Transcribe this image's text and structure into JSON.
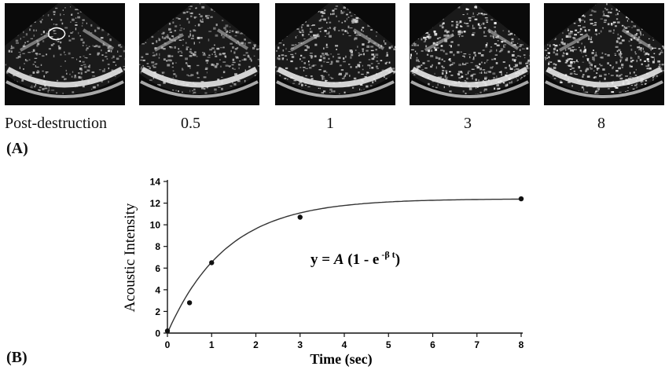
{
  "panel_a": {
    "label": "(A)",
    "frames": [
      {
        "time_label": "Post-destruction",
        "brightness": 0.35,
        "dark_core": 0.0
      },
      {
        "time_label": "0.5",
        "brightness": 0.45,
        "dark_core": 0.2
      },
      {
        "time_label": "1",
        "brightness": 0.6,
        "dark_core": 0.5
      },
      {
        "time_label": "3",
        "brightness": 0.78,
        "dark_core": 0.8
      },
      {
        "time_label": "8",
        "brightness": 0.85,
        "dark_core": 0.9
      }
    ]
  },
  "panel_b": {
    "label": "(B)",
    "equation": {
      "prefix": "y = ",
      "A": "A",
      "open": " (1 - e",
      "exponent": " -β t",
      "close": ")"
    }
  },
  "chart_data": {
    "type": "scatter",
    "title": "",
    "xlabel": "Time (sec)",
    "ylabel": "Acoustic Intensity",
    "xlim": [
      0,
      8
    ],
    "ylim": [
      0,
      14
    ],
    "xticks": [
      0,
      1,
      2,
      3,
      4,
      5,
      6,
      7,
      8
    ],
    "yticks": [
      0,
      2,
      4,
      6,
      8,
      10,
      12,
      14
    ],
    "points": [
      {
        "x": 0,
        "y": 0.2
      },
      {
        "x": 0.5,
        "y": 2.8
      },
      {
        "x": 1,
        "y": 6.5
      },
      {
        "x": 3,
        "y": 10.7
      },
      {
        "x": 8,
        "y": 12.4
      }
    ],
    "fit": {
      "A": 12.4,
      "beta": 0.75
    }
  }
}
